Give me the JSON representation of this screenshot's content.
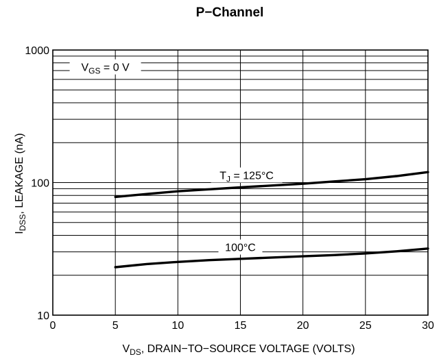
{
  "chart_data": {
    "type": "line",
    "title": "P−Channel",
    "xlabel": {
      "main": "V",
      "sub": "DS",
      "rest": ", DRAIN−TO−SOURCE VOLTAGE (VOLTS)"
    },
    "ylabel": {
      "main": "I",
      "sub": "DSS",
      "rest": ", LEAKAGE (nA)"
    },
    "x_scale": "linear",
    "y_scale": "log",
    "xlim": [
      0,
      30
    ],
    "ylim": [
      10,
      1000
    ],
    "x_ticks": [
      0,
      5,
      10,
      15,
      20,
      25,
      30
    ],
    "x_tick_labels": [
      "0",
      "5",
      "10",
      "15",
      "20",
      "25",
      "30"
    ],
    "y_tick_labels": [
      {
        "value": 10,
        "label": "10"
      },
      {
        "value": 100,
        "label": "100"
      },
      {
        "value": 1000,
        "label": "1000"
      }
    ],
    "grid": true,
    "annotations": {
      "vgs": {
        "main": "V",
        "sub": "GS",
        "rest": " = 0 V"
      },
      "tj": {
        "main": "T",
        "sub": "J",
        "rest": " = 125°C"
      },
      "t100": {
        "text": "100°C"
      }
    },
    "series": [
      {
        "label_ref": "tj",
        "x": [
          5,
          7.5,
          10,
          12.5,
          15,
          17.5,
          20,
          22.5,
          25,
          27.5,
          30
        ],
        "y": [
          78,
          82,
          86,
          89,
          92,
          95,
          98,
          102,
          106,
          112,
          120
        ]
      },
      {
        "label_ref": "t100",
        "x": [
          5,
          7.5,
          10,
          12.5,
          15,
          17.5,
          20,
          22.5,
          25,
          27.5,
          30
        ],
        "y": [
          23,
          24.3,
          25.2,
          26,
          26.6,
          27.2,
          27.8,
          28.4,
          29.2,
          30.3,
          31.8
        ]
      }
    ]
  }
}
